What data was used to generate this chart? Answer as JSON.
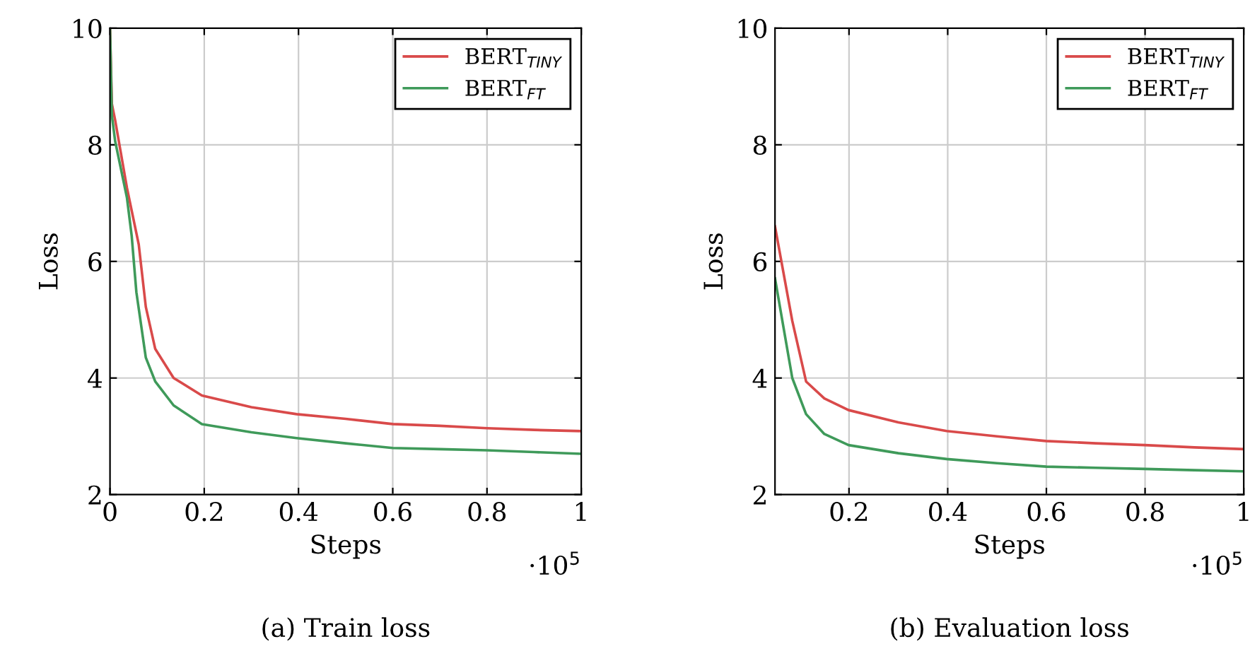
{
  "chart_data": [
    {
      "type": "line",
      "title": "(a) Train loss",
      "xlabel": "Steps",
      "ylabel": "Loss",
      "annotations": [
        "·10$^{5}$"
      ],
      "xlim": [
        0,
        1
      ],
      "xticks": [
        0,
        0.2,
        0.4,
        0.6,
        0.8,
        1
      ],
      "ylim": [
        2,
        10
      ],
      "yticks": [
        2,
        4,
        6,
        8,
        10
      ],
      "grid": true,
      "legend": "top right",
      "marker": "none",
      "line_style": "solid",
      "series": [
        {
          "name": "BERT$_{TINY}$",
          "color": "#d94a4a",
          "x": [
            0,
            0.004,
            0.011,
            0.036,
            0.061,
            0.076,
            0.096,
            0.135,
            0.195,
            0.3,
            0.396,
            0.5,
            0.6,
            0.7,
            0.8,
            0.9,
            1.0
          ],
          "values": [
            10,
            8.7,
            8.42,
            7.26,
            6.29,
            5.22,
            4.5,
            4.0,
            3.7,
            3.5,
            3.38,
            3.3,
            3.21,
            3.18,
            3.14,
            3.11,
            3.09
          ]
        },
        {
          "name": "BERT$_{FT}$",
          "color": "#3f9a5a",
          "x": [
            0,
            0.004,
            0.011,
            0.036,
            0.046,
            0.056,
            0.076,
            0.096,
            0.135,
            0.195,
            0.3,
            0.396,
            0.5,
            0.6,
            0.7,
            0.8,
            0.9,
            1.0
          ],
          "values": [
            10,
            8.5,
            8.06,
            7.09,
            6.44,
            5.47,
            4.35,
            3.94,
            3.53,
            3.21,
            3.07,
            2.97,
            2.88,
            2.8,
            2.78,
            2.76,
            2.73,
            2.7
          ]
        }
      ]
    },
    {
      "type": "line",
      "title": "(b) Evaluation loss",
      "xlabel": "Steps",
      "ylabel": "Loss",
      "annotations": [
        "·10$^{5}$"
      ],
      "xlim": [
        0.05,
        1
      ],
      "xticks": [
        0.2,
        0.4,
        0.6,
        0.8,
        1
      ],
      "ylim": [
        2,
        10
      ],
      "yticks": [
        2,
        4,
        6,
        8,
        10
      ],
      "grid": true,
      "legend": "top right",
      "marker": "none",
      "line_style": "solid",
      "series": [
        {
          "name": "BERT$_{TINY}$",
          "color": "#d94a4a",
          "x": [
            0.05,
            0.085,
            0.113,
            0.15,
            0.199,
            0.3,
            0.398,
            0.5,
            0.599,
            0.7,
            0.799,
            0.9,
            1.0
          ],
          "values": [
            6.6,
            4.98,
            3.94,
            3.65,
            3.45,
            3.24,
            3.09,
            3.0,
            2.92,
            2.88,
            2.85,
            2.81,
            2.78
          ]
        },
        {
          "name": "BERT$_{FT}$",
          "color": "#3f9a5a",
          "x": [
            0.05,
            0.085,
            0.113,
            0.15,
            0.199,
            0.3,
            0.398,
            0.5,
            0.6,
            0.7,
            0.8,
            0.9,
            1.0
          ],
          "values": [
            5.71,
            4.0,
            3.38,
            3.04,
            2.85,
            2.71,
            2.61,
            2.54,
            2.48,
            2.46,
            2.44,
            2.42,
            2.4
          ]
        }
      ]
    }
  ]
}
